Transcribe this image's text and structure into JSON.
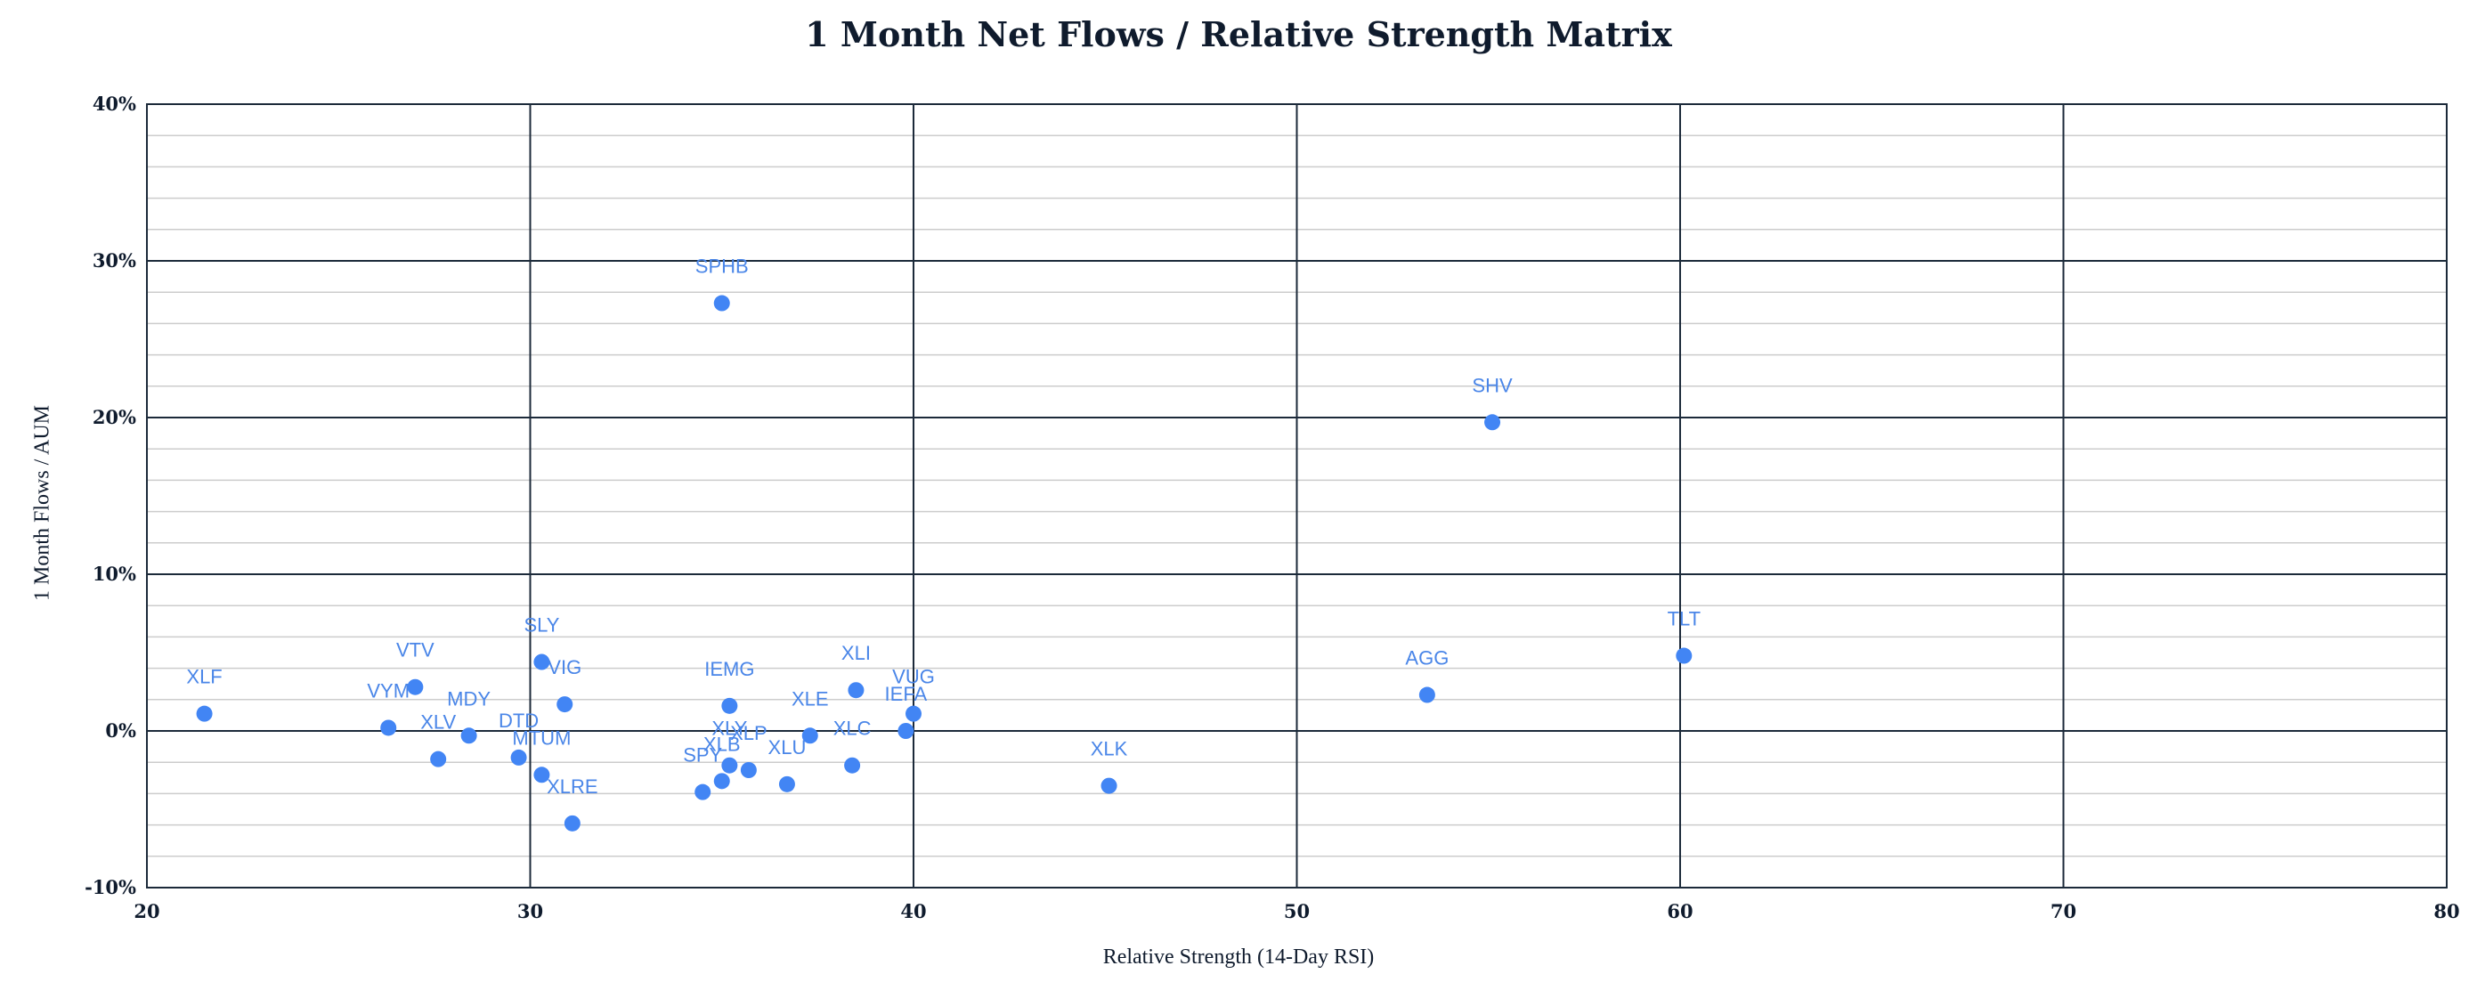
{
  "chart_data": {
    "type": "scatter",
    "title": "1 Month Net Flows / Relative Strength Matrix",
    "xlabel": "Relative Strength (14-Day RSI)",
    "ylabel": "1 Month Flows / AUM",
    "xlim": [
      20,
      80
    ],
    "ylim": [
      -10,
      40
    ],
    "x_ticks": [
      "20",
      "30",
      "40",
      "50",
      "60",
      "70",
      "80"
    ],
    "y_ticks": [
      "-10%",
      "0%",
      "10%",
      "20%",
      "30%",
      "40%"
    ],
    "grid": true,
    "points": [
      {
        "label": "XLF",
        "x": 21.5,
        "y": 1.1
      },
      {
        "label": "VTV",
        "x": 27.0,
        "y": 2.8
      },
      {
        "label": "VYM",
        "x": 26.3,
        "y": 0.2
      },
      {
        "label": "XLV",
        "x": 27.6,
        "y": -1.8
      },
      {
        "label": "MDY",
        "x": 28.4,
        "y": -0.3
      },
      {
        "label": "DTD",
        "x": 29.7,
        "y": -1.7
      },
      {
        "label": "MTUM",
        "x": 30.3,
        "y": -2.8
      },
      {
        "label": "SLY",
        "x": 30.3,
        "y": 4.4
      },
      {
        "label": "VIG",
        "x": 30.9,
        "y": 1.7
      },
      {
        "label": "XLRE",
        "x": 31.1,
        "y": -5.9
      },
      {
        "label": "SPY",
        "x": 34.5,
        "y": -3.9
      },
      {
        "label": "XLB",
        "x": 35.0,
        "y": -3.2
      },
      {
        "label": "SPHB",
        "x": 35.0,
        "y": 27.3
      },
      {
        "label": "XLY",
        "x": 35.2,
        "y": -2.2
      },
      {
        "label": "IEMG",
        "x": 35.2,
        "y": 1.6
      },
      {
        "label": "XLP",
        "x": 35.7,
        "y": -2.5
      },
      {
        "label": "XLU",
        "x": 36.7,
        "y": -3.4
      },
      {
        "label": "XLE",
        "x": 37.3,
        "y": -0.3
      },
      {
        "label": "XLC",
        "x": 38.4,
        "y": -2.2
      },
      {
        "label": "XLI",
        "x": 38.5,
        "y": 2.6
      },
      {
        "label": "IEFA",
        "x": 39.8,
        "y": 0.0
      },
      {
        "label": "VUG",
        "x": 40.0,
        "y": 1.1
      },
      {
        "label": "XLK",
        "x": 45.1,
        "y": -3.5
      },
      {
        "label": "AGG",
        "x": 53.4,
        "y": 2.3
      },
      {
        "label": "SHV",
        "x": 55.1,
        "y": 19.7
      },
      {
        "label": "TLT",
        "x": 60.1,
        "y": 4.8
      }
    ],
    "point_color": "#4285f4",
    "label_color": "#4a86e8"
  }
}
